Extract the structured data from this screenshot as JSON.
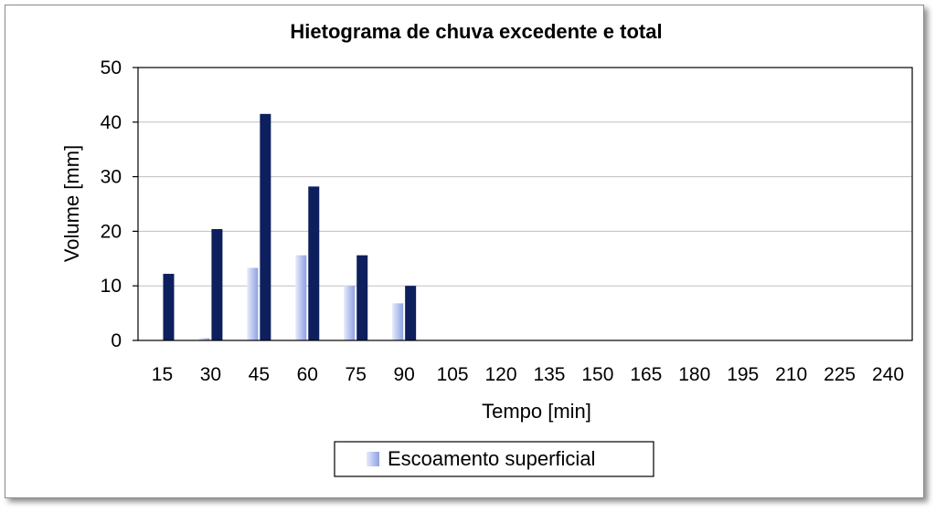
{
  "chart_data": {
    "type": "bar",
    "title": "Hietograma de chuva excedente e total",
    "xlabel": "Tempo [min]",
    "ylabel": "Volume [mm]",
    "ylim": [
      0,
      50
    ],
    "yticks": [
      0,
      10,
      20,
      30,
      40,
      50
    ],
    "grid": true,
    "legend_position": "bottom",
    "categories": [
      "15",
      "30",
      "45",
      "60",
      "75",
      "90",
      "105",
      "120",
      "135",
      "150",
      "165",
      "180",
      "195",
      "210",
      "225",
      "240"
    ],
    "series": [
      {
        "name": "Escoamento superficial",
        "color": "#b4c2f0",
        "values": [
          0,
          0.4,
          13.3,
          15.6,
          10,
          6.8,
          0,
          0,
          0,
          0,
          0,
          0,
          0,
          0,
          0,
          0
        ]
      },
      {
        "color": "#0d1f5c",
        "values": [
          12.2,
          20.4,
          41.5,
          28.2,
          15.6,
          10,
          0,
          0,
          0,
          0,
          0,
          0,
          0,
          0,
          0,
          0
        ]
      }
    ]
  }
}
